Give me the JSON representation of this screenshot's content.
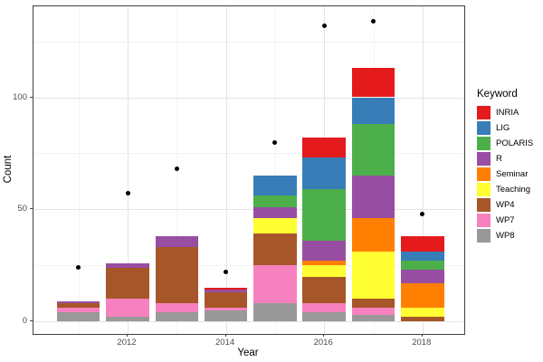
{
  "figure": {
    "xlabel": "Year",
    "ylabel": "Count",
    "legend_title": "Keyword"
  },
  "chart_data": {
    "type": "bar",
    "subtype": "stacked-bar-with-scatter-points",
    "title": "",
    "xlabel": "Year",
    "ylabel": "Count",
    "x": [
      2011,
      2012,
      2013,
      2014,
      2015,
      2016,
      2017,
      2018
    ],
    "x_ticks": [
      2012,
      2014,
      2016,
      2018
    ],
    "y_ticks": [
      0,
      50,
      100
    ],
    "ylim": [
      -5,
      141
    ],
    "grid": {
      "major_y": [
        0,
        50,
        100
      ],
      "minor_y": [
        25,
        75,
        125
      ],
      "major_x": [
        2012,
        2014,
        2016,
        2018
      ],
      "minor_x": [
        2011,
        2013,
        2015,
        2017
      ]
    },
    "legend_title": "Keyword",
    "legend_position": "right",
    "stack_note": "bars stacked bottom-to-top in reverse legend order (WP8 at bottom, INRIA on top)",
    "series": [
      {
        "name": "INRIA",
        "color": "#E41A1C",
        "values": [
          0,
          0,
          0,
          1,
          0,
          9,
          13,
          7
        ]
      },
      {
        "name": "LIG",
        "color": "#377EB8",
        "values": [
          0,
          0,
          0,
          0,
          9,
          14,
          12,
          4
        ]
      },
      {
        "name": "POLARIS",
        "color": "#4DAF4A",
        "values": [
          0,
          0,
          0,
          0,
          5,
          23,
          23,
          4
        ]
      },
      {
        "name": "R",
        "color": "#984EA3",
        "values": [
          1,
          2,
          5,
          1,
          5,
          9,
          19,
          6
        ]
      },
      {
        "name": "Seminar",
        "color": "#FF7F00",
        "values": [
          0,
          0,
          0,
          0,
          0,
          2,
          15,
          11
        ]
      },
      {
        "name": "Teaching",
        "color": "#FFFF33",
        "values": [
          0,
          0,
          0,
          0,
          7,
          5,
          21,
          4
        ]
      },
      {
        "name": "WP4",
        "color": "#A65628",
        "values": [
          2,
          14,
          25,
          7,
          14,
          12,
          4,
          2
        ]
      },
      {
        "name": "WP7",
        "color": "#F781BF",
        "values": [
          2,
          8,
          4,
          1,
          17,
          4,
          3,
          0
        ]
      },
      {
        "name": "WP8",
        "color": "#999999",
        "values": [
          4,
          2,
          4,
          5,
          8,
          4,
          3,
          0
        ]
      }
    ],
    "bar_totals": [
      9,
      26,
      38,
      15,
      65,
      82,
      113,
      38
    ],
    "points": {
      "name": "black-dots",
      "color": "#000000",
      "values": [
        24,
        57,
        68,
        22,
        80,
        132,
        134,
        48
      ]
    }
  }
}
